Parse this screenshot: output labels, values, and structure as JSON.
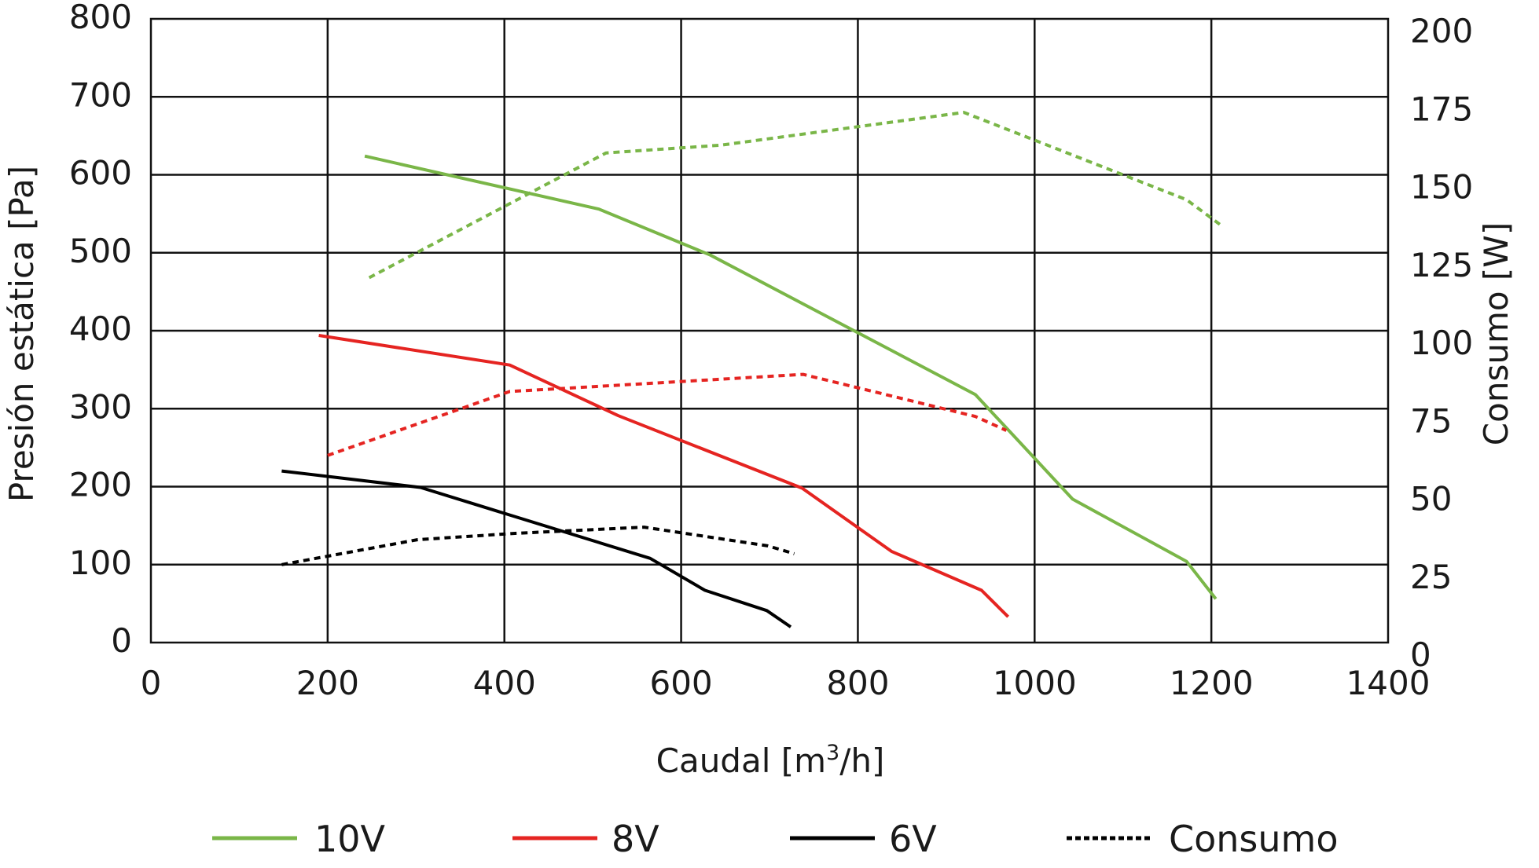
{
  "chart_data": {
    "type": "line",
    "xlabel_main": "Caudal [m",
    "xlabel_sup": "3",
    "xlabel_end": "/h]",
    "ylabel_left": "Presión estática [Pa]",
    "ylabel_right": "Consumo [W]",
    "xlim": [
      0,
      1400
    ],
    "ylim_left": [
      0,
      800
    ],
    "ylim_right": [
      0,
      200
    ],
    "x_ticks": [
      "0",
      "200",
      "400",
      "600",
      "800",
      "1000",
      "1200",
      "1400"
    ],
    "y_left_ticks": [
      "0",
      "100",
      "200",
      "300",
      "400",
      "500",
      "600",
      "700",
      "800"
    ],
    "y_right_ticks": [
      "0",
      "25",
      "50",
      "75",
      "100",
      "125",
      "150",
      "175",
      "200"
    ],
    "grid": true,
    "legend_position": "bottom",
    "legend": [
      {
        "label": "10V",
        "color": "#7ab648",
        "style": "solid"
      },
      {
        "label": "8V",
        "color": "#e52421",
        "style": "solid"
      },
      {
        "label": "6V",
        "color": "#000000",
        "style": "solid"
      },
      {
        "label": "Consumo",
        "color": "#000000",
        "style": "dashed"
      }
    ],
    "series": [
      {
        "name": "10V",
        "axis": "left",
        "color": "#7ab648",
        "dash": false,
        "x": [
          242,
          507,
          633,
          933,
          1043,
          1172,
          1205
        ],
        "y": [
          624,
          556,
          497,
          318,
          184,
          104,
          56
        ]
      },
      {
        "name": "8V",
        "axis": "left",
        "color": "#e52421",
        "dash": false,
        "x": [
          190,
          406,
          529,
          737,
          838,
          940,
          970
        ],
        "y": [
          394,
          356,
          291,
          198,
          117,
          67,
          33
        ]
      },
      {
        "name": "6V",
        "axis": "left",
        "color": "#000000",
        "dash": false,
        "x": [
          148,
          305,
          565,
          627,
          697,
          724
        ],
        "y": [
          220,
          199,
          108,
          67,
          41,
          20
        ]
      },
      {
        "name": "Consumo",
        "axis": "right",
        "color": "#7ab648",
        "dash": true,
        "x": [
          247,
          515,
          645,
          920,
          1172,
          1210
        ],
        "y": [
          117,
          157,
          159.5,
          170,
          142,
          134
        ]
      },
      {
        "name": "Consumo",
        "axis": "right",
        "color": "#e52421",
        "dash": true,
        "x": [
          200,
          406,
          527,
          738,
          933,
          968
        ],
        "y": [
          60,
          80.5,
          82.5,
          86,
          72.5,
          68
        ]
      },
      {
        "name": "Consumo",
        "axis": "right",
        "color": "#000000",
        "dash": true,
        "x": [
          148,
          302,
          412,
          558,
          698,
          728
        ],
        "y": [
          25,
          33,
          35,
          37,
          31,
          28.5
        ]
      }
    ]
  }
}
